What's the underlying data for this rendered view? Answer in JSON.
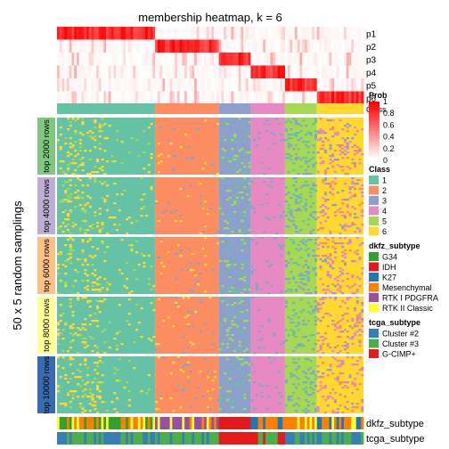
{
  "chart_data": {
    "type": "heatmap",
    "title": "membership heatmap, k = 6",
    "ylabel": "50 x 5 random samplings",
    "prob_rows": [
      "p1",
      "p2",
      "p3",
      "p4",
      "p5",
      "p6"
    ],
    "row_groups": [
      "top 2000 rows",
      "top 4000 rows",
      "top 6000 rows",
      "top 8000 rows",
      "top 10000 rows"
    ],
    "row_group_colors": [
      "#7fc97f",
      "#beaed4",
      "#fdc086",
      "#ffff99",
      "#386cb0"
    ],
    "bottom_tracks": [
      "dkfz_subtype",
      "tcga_subtype"
    ],
    "class_track_label": "Class",
    "legends": {
      "prob": {
        "title": "Prob",
        "ticks": [
          "1",
          "0.8",
          "0.6",
          "0.4",
          "0.2",
          "0"
        ],
        "color_high": "#ff0000",
        "color_low": "#ffffff"
      },
      "class": {
        "title": "Class",
        "entries": [
          {
            "label": "1",
            "color": "#66c2a5"
          },
          {
            "label": "2",
            "color": "#fc8d62"
          },
          {
            "label": "3",
            "color": "#8da0cb"
          },
          {
            "label": "4",
            "color": "#e78ac3"
          },
          {
            "label": "5",
            "color": "#a6d854"
          },
          {
            "label": "6",
            "color": "#ffd92f"
          }
        ]
      },
      "dkfz_subtype": {
        "title": "dkfz_subtype",
        "entries": [
          {
            "label": "G34",
            "color": "#33a02c"
          },
          {
            "label": "IDH",
            "color": "#e31a1c"
          },
          {
            "label": "K27",
            "color": "#1f78b4"
          },
          {
            "label": "Mesenchymal",
            "color": "#ff7f00"
          },
          {
            "label": "RTK I PDGFRA",
            "color": "#984ea3"
          },
          {
            "label": "RTK II Classic",
            "color": "#ffff33"
          }
        ]
      },
      "tcga_subtype": {
        "title": "tcga_subtype",
        "entries": [
          {
            "label": "Cluster #2",
            "color": "#377eb8"
          },
          {
            "label": "Cluster #3",
            "color": "#4daf4a"
          },
          {
            "label": "G-CIMP+",
            "color": "#e41a1c"
          }
        ]
      }
    },
    "class_segments": [
      {
        "class": 1,
        "fraction": 0.316
      },
      {
        "class": 2,
        "fraction": 0.208
      },
      {
        "class": 3,
        "fraction": 0.104
      },
      {
        "class": 4,
        "fraction": 0.112
      },
      {
        "class": 5,
        "fraction": 0.104
      },
      {
        "class": 6,
        "fraction": 0.156
      }
    ]
  }
}
